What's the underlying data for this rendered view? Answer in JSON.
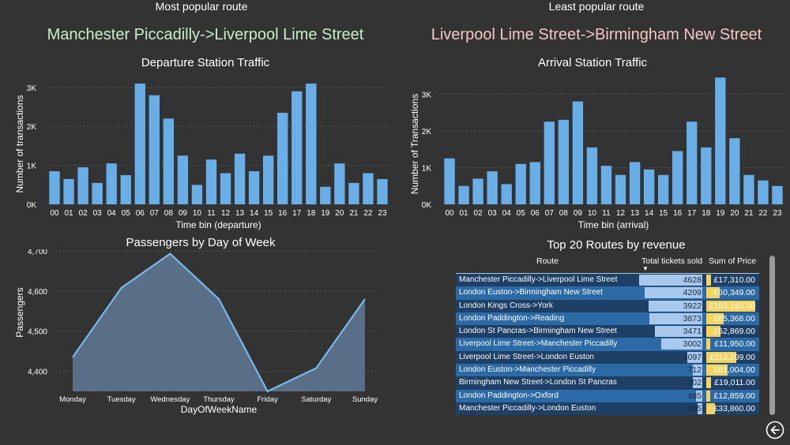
{
  "header": {
    "popular_label": "Most popular route",
    "popular_route": "Manchester Piccadilly->Liverpool Lime Street",
    "least_label": "Least popular route",
    "least_route": "Liverpool Lime Street->Birmingham New Street"
  },
  "colors": {
    "background": "#333333",
    "bar": "#6aaee8",
    "popular_route": "#c8f0c8",
    "least_route": "#f5c6c6",
    "line": "#7ab8e8",
    "area": "#5c7590",
    "table_row_dark": "#1e3f66",
    "table_row_light": "#2c6aa7",
    "tickets_bar": "#a8c8ee",
    "price_bar": "#f5d35f"
  },
  "chart_data": [
    {
      "type": "bar",
      "title": "Departure Station Traffic",
      "xlabel": "Time bin (departure)",
      "ylabel": "Number of transactions",
      "categories": [
        "00",
        "01",
        "02",
        "03",
        "04",
        "05",
        "06",
        "07",
        "08",
        "09",
        "10",
        "11",
        "12",
        "13",
        "14",
        "15",
        "16",
        "17",
        "18",
        "19",
        "20",
        "21",
        "22",
        "23"
      ],
      "values": [
        850,
        650,
        950,
        550,
        1050,
        750,
        3100,
        2800,
        2200,
        1250,
        500,
        1150,
        800,
        1300,
        850,
        1250,
        2350,
        2900,
        3100,
        450,
        1050,
        550,
        800,
        650
      ],
      "ylim": [
        0,
        3300
      ],
      "yticks": [
        0,
        1000,
        2000,
        3000
      ],
      "yticklabels": [
        "0K",
        "1K",
        "2K",
        "3K"
      ],
      "grid": true
    },
    {
      "type": "bar",
      "title": "Arrival Station Traffic",
      "xlabel": "Time bin (arrival)",
      "ylabel": "Number of Transactions",
      "categories": [
        "00",
        "01",
        "02",
        "03",
        "04",
        "05",
        "06",
        "07",
        "08",
        "09",
        "10",
        "11",
        "12",
        "13",
        "14",
        "15",
        "16",
        "17",
        "18",
        "19",
        "20",
        "21",
        "22",
        "23"
      ],
      "values": [
        1250,
        500,
        700,
        900,
        550,
        1100,
        1150,
        2250,
        2300,
        2800,
        1550,
        1050,
        800,
        1150,
        950,
        800,
        1450,
        2250,
        1550,
        3450,
        1800,
        800,
        650,
        500
      ],
      "ylim": [
        0,
        3500
      ],
      "yticks": [
        0,
        1000,
        2000,
        3000
      ],
      "yticklabels": [
        "0K",
        "1K",
        "2K",
        "3K"
      ],
      "grid": true
    },
    {
      "type": "area",
      "title": "Passengers by Day of Week",
      "xlabel": "DayOfWeekName",
      "ylabel": "Passengers",
      "categories": [
        "Monday",
        "Tuesday",
        "Wednesday",
        "Thursday",
        "Friday",
        "Saturday",
        "Sunday"
      ],
      "values": [
        4435,
        4608,
        4693,
        4580,
        4350,
        4408,
        4580
      ],
      "ylim": [
        4350,
        4700
      ],
      "yticks": [
        4400,
        4500,
        4600,
        4700
      ],
      "yticklabels": [
        "4,400",
        "4,500",
        "4,600",
        "4,700"
      ],
      "grid": true
    },
    {
      "type": "table",
      "title": "Top 20 Routes by revenue",
      "columns": [
        "Route",
        "Total tickets sold",
        "Sum of Price"
      ],
      "rows": [
        {
          "route": "Manchester Piccadilly->Liverpool Lime Street",
          "tickets": 4628,
          "tickets_label": "4628",
          "price": 17310,
          "price_label": "£17,310.00"
        },
        {
          "route": "London Euston->Birmingham New Street",
          "tickets": 4209,
          "tickets_label": "4209",
          "price": 50349,
          "price_label": "£50,349.00"
        },
        {
          "route": "London Kings Cross->York",
          "tickets": 3922,
          "tickets_label": "3922",
          "price": 183193,
          "price_label": "£183,193.00"
        },
        {
          "route": "London Paddington->Reading",
          "tickets": 3873,
          "tickets_label": "3873",
          "price": 65368,
          "price_label": "£65,368.00"
        },
        {
          "route": "London St Pancras->Birmingham New Street",
          "tickets": 3471,
          "tickets_label": "3471",
          "price": 52869,
          "price_label": "£52,869.00"
        },
        {
          "route": "Liverpool Lime Street->Manchester Piccadilly",
          "tickets": 3002,
          "tickets_label": "3002",
          "price": 11950,
          "price_label": "£11,950.00"
        },
        {
          "route": "Liverpool Lime Street->London Euston",
          "tickets": 1097,
          "tickets_label": "1097",
          "price": 113299,
          "price_label": "£113,299.00"
        },
        {
          "route": "London Euston->Manchester Piccadilly",
          "tickets": 712,
          "tickets_label": "712",
          "price": 81004,
          "price_label": "£81,004.00"
        },
        {
          "route": "Birmingham New Street->London St Pancras",
          "tickets": 702,
          "tickets_label": "702",
          "price": 19011,
          "price_label": "£19,011.00"
        },
        {
          "route": "London Paddington->Oxford",
          "tickets": 485,
          "tickets_label": "485",
          "price": 12859,
          "price_label": "£12,859.00"
        },
        {
          "route": "Manchester Piccadilly->London Euston",
          "tickets": 345,
          "tickets_label": "345",
          "price": 33860,
          "price_label": "£33,860.00"
        }
      ],
      "sort": "Total tickets sold descending"
    }
  ],
  "nav": {
    "back_icon": "back-arrow-icon"
  }
}
